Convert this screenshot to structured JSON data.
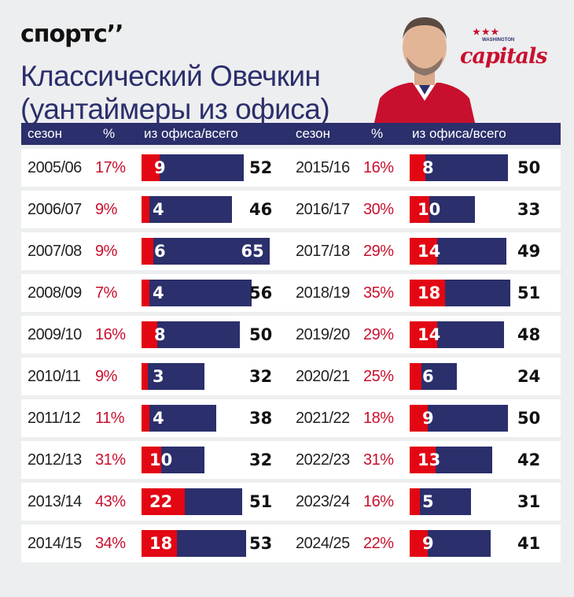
{
  "brand": {
    "logo_text": "спортс’’"
  },
  "title_lines": [
    "Классический Овечкин",
    "(уантаймеры из офиса)"
  ],
  "team": {
    "name": "capitals",
    "city": "WASHINGTON",
    "stars": "★ ★ ★"
  },
  "headers": {
    "season": "сезон",
    "pct": "%",
    "bar": "из офиса/всего"
  },
  "colors": {
    "navy": "#2b2f6b",
    "red": "#e30613",
    "pct_red": "#c8102e"
  },
  "chart_data": {
    "type": "bar",
    "title": "Классический Овечкин (уантаймеры из офиса)",
    "series": [
      {
        "name": "из офиса"
      },
      {
        "name": "всего"
      }
    ],
    "rows": [
      {
        "season": "2005/06",
        "pct": "17%",
        "office": 9,
        "total": 52
      },
      {
        "season": "2006/07",
        "pct": "9%",
        "office": 4,
        "total": 46
      },
      {
        "season": "2007/08",
        "pct": "9%",
        "office": 6,
        "total": 65
      },
      {
        "season": "2008/09",
        "pct": "7%",
        "office": 4,
        "total": 56
      },
      {
        "season": "2009/10",
        "pct": "16%",
        "office": 8,
        "total": 50
      },
      {
        "season": "2010/11",
        "pct": "9%",
        "office": 3,
        "total": 32
      },
      {
        "season": "2011/12",
        "pct": "11%",
        "office": 4,
        "total": 38
      },
      {
        "season": "2012/13",
        "pct": "31%",
        "office": 10,
        "total": 32
      },
      {
        "season": "2013/14",
        "pct": "43%",
        "office": 22,
        "total": 51
      },
      {
        "season": "2014/15",
        "pct": "34%",
        "office": 18,
        "total": 53
      },
      {
        "season": "2015/16",
        "pct": "16%",
        "office": 8,
        "total": 50
      },
      {
        "season": "2016/17",
        "pct": "30%",
        "office": 10,
        "total": 33
      },
      {
        "season": "2017/18",
        "pct": "29%",
        "office": 14,
        "total": 49
      },
      {
        "season": "2018/19",
        "pct": "35%",
        "office": 18,
        "total": 51
      },
      {
        "season": "2019/20",
        "pct": "29%",
        "office": 14,
        "total": 48
      },
      {
        "season": "2020/21",
        "pct": "25%",
        "office": 6,
        "total": 24
      },
      {
        "season": "2021/22",
        "pct": "18%",
        "office": 9,
        "total": 50
      },
      {
        "season": "2022/23",
        "pct": "31%",
        "office": 13,
        "total": 42
      },
      {
        "season": "2023/24",
        "pct": "16%",
        "office": 5,
        "total": 31
      },
      {
        "season": "2024/25",
        "pct": "22%",
        "office": 9,
        "total": 41
      }
    ]
  }
}
